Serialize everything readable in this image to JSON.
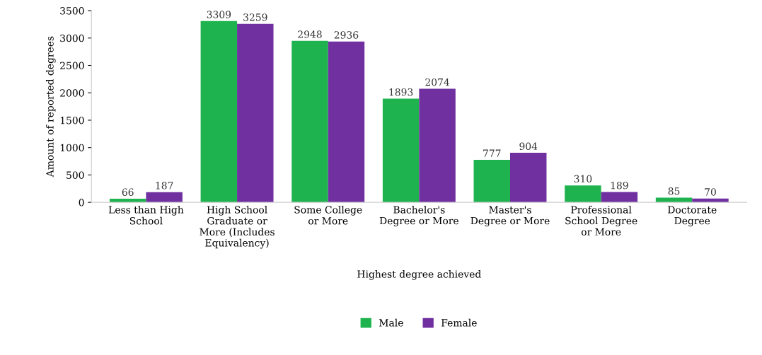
{
  "chart_data": {
    "type": "bar",
    "xlabel": "Highest degree achieved",
    "ylabel": "Amount of reported degrees",
    "categories": [
      "Less than High\nSchool",
      "High School\nGraduate or\nMore (Includes\nEquivalency)",
      "Some College\nor More",
      "Bachelor's\nDegree or More",
      "Master's\nDegree or More",
      "Professional\nSchool Degree\nor More",
      "Doctorate\nDegree"
    ],
    "series": [
      {
        "name": "Male",
        "color": "#1fb34f",
        "values": [
          66,
          3309,
          2948,
          1893,
          777,
          310,
          85
        ]
      },
      {
        "name": "Female",
        "color": "#7030a0",
        "values": [
          187,
          3259,
          2936,
          2074,
          904,
          189,
          70
        ]
      }
    ],
    "ylim": [
      0,
      3500
    ],
    "yticks": [
      0,
      500,
      1000,
      1500,
      2000,
      2500,
      3000,
      3500
    ],
    "data_labels": true,
    "grid": false,
    "legend": "bottom"
  }
}
